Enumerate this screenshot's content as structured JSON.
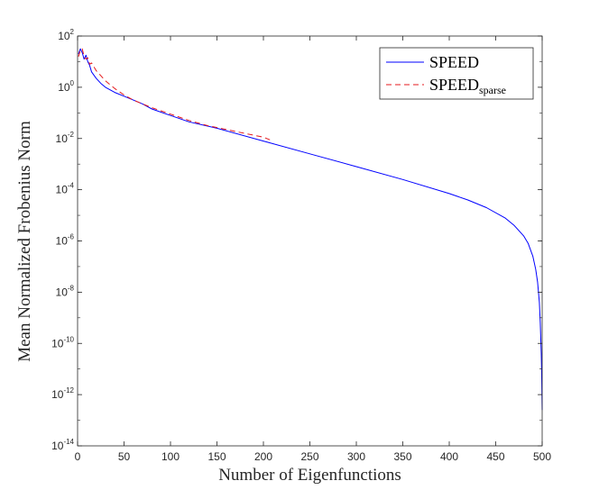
{
  "chart_data": {
    "type": "line",
    "title": "",
    "xlabel": "Number of Eigenfunctions",
    "ylabel": "Mean Normalized Frobenius Norm",
    "xlim": [
      0,
      500
    ],
    "ylim_log10": [
      -14,
      2
    ],
    "yscale": "log",
    "grid": false,
    "legend_position": "top-right",
    "x_ticks": [
      "0",
      "50",
      "100",
      "150",
      "200",
      "250",
      "300",
      "350",
      "400",
      "450",
      "500"
    ],
    "y_ticks": [
      {
        "base": "10",
        "exp": "2"
      },
      {
        "base": "10",
        "exp": "0"
      },
      {
        "base": "10",
        "exp": "-2"
      },
      {
        "base": "10",
        "exp": "-4"
      },
      {
        "base": "10",
        "exp": "-6"
      },
      {
        "base": "10",
        "exp": "-8"
      },
      {
        "base": "10",
        "exp": "-10"
      },
      {
        "base": "10",
        "exp": "-12"
      },
      {
        "base": "10",
        "exp": "-14"
      }
    ],
    "series": [
      {
        "name": "SPEED",
        "legend_main": "SPEED",
        "legend_sub": "",
        "color": "#0000ff",
        "dash": "solid",
        "x": [
          1,
          3,
          5,
          7,
          9,
          11,
          13,
          15,
          20,
          25,
          30,
          40,
          50,
          60,
          70,
          80,
          100,
          120,
          150,
          200,
          250,
          300,
          350,
          400,
          420,
          440,
          460,
          470,
          480,
          485,
          490,
          493,
          495,
          497,
          498,
          499,
          499.5,
          500
        ],
        "y_log10": [
          1.3,
          1.5,
          1.35,
          1.1,
          1.25,
          1.0,
          0.85,
          0.6,
          0.35,
          0.15,
          0.0,
          -0.2,
          -0.35,
          -0.5,
          -0.65,
          -0.85,
          -1.1,
          -1.35,
          -1.6,
          -2.1,
          -2.6,
          -3.1,
          -3.6,
          -4.15,
          -4.4,
          -4.7,
          -5.1,
          -5.4,
          -5.8,
          -6.1,
          -6.6,
          -7.1,
          -7.6,
          -8.4,
          -9.2,
          -10.4,
          -11.3,
          -12.6
        ]
      },
      {
        "name": "SPEED_sparse",
        "legend_main": "SPEED",
        "legend_sub": "sparse",
        "color": "#e41a1c",
        "dash": "dashed",
        "x": [
          1,
          3,
          5,
          7,
          9,
          11,
          13,
          15,
          20,
          25,
          30,
          40,
          50,
          60,
          80,
          100,
          120,
          140,
          160,
          180,
          200,
          207
        ],
        "y_log10": [
          1.2,
          1.45,
          1.5,
          1.2,
          1.1,
          1.15,
          0.9,
          0.95,
          0.65,
          0.45,
          0.25,
          -0.05,
          -0.3,
          -0.5,
          -0.8,
          -1.05,
          -1.3,
          -1.5,
          -1.65,
          -1.8,
          -1.95,
          -2.05
        ]
      }
    ]
  }
}
